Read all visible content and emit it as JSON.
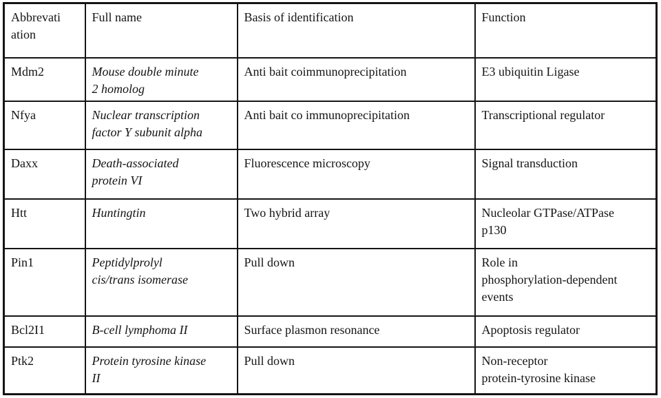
{
  "colors": {
    "border": "#141414",
    "background": "#ffffff",
    "text": "#141414"
  },
  "table": {
    "columns": [
      {
        "label": "Abbrevati\nation"
      },
      {
        "label": "Full name"
      },
      {
        "label": "Basis of identification"
      },
      {
        "label": "Function"
      }
    ],
    "rows": [
      {
        "abbreviation": "Mdm2",
        "full_name": "Mouse double minute\n2 homolog",
        "basis": "Anti bait coimmunoprecipitation",
        "function": "E3 ubiquitin Ligase"
      },
      {
        "abbreviation": "Nfya",
        "full_name": "Nuclear transcription\nfactor Y subunit alpha",
        "basis": "Anti bait co immunoprecipitation",
        "function": "Transcriptional regulator"
      },
      {
        "abbreviation": "Daxx",
        "full_name": "Death-associated\nprotein VI",
        "basis": "Fluorescence microscopy",
        "function": "Signal transduction"
      },
      {
        "abbreviation": "Htt",
        "full_name": "Huntingtin",
        "basis": "Two hybrid array",
        "function": "Nucleolar GTPase/ATPase\np130"
      },
      {
        "abbreviation": "Pin1",
        "full_name": "Peptidylprolyl\ncis/trans isomerase",
        "basis": "Pull down",
        "function": "Role in\nphosphorylation-dependent\nevents"
      },
      {
        "abbreviation": "Bcl2I1",
        "full_name": "B-cell lymphoma II",
        "basis": "Surface plasmon resonance",
        "function": "Apoptosis regulator"
      },
      {
        "abbreviation": "Ptk2",
        "full_name": "Protein tyrosine kinase\nII",
        "basis": "Pull down",
        "function": "Non-receptor\nprotein-tyrosine kinase"
      }
    ]
  }
}
